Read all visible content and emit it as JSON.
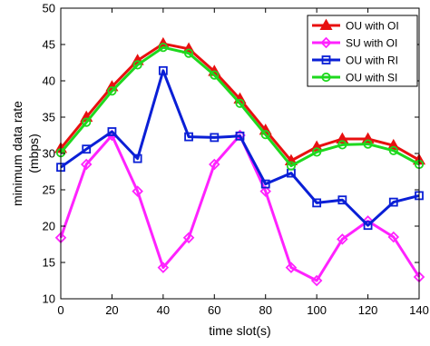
{
  "chart_data": {
    "type": "line",
    "xlabel": "time slot(s)",
    "ylabel_lines": [
      "minimum data rate",
      "(mbps)"
    ],
    "xlim": [
      0,
      140
    ],
    "ylim": [
      10,
      50
    ],
    "x_ticks": [
      0,
      20,
      40,
      60,
      80,
      100,
      120,
      140
    ],
    "y_ticks": [
      10,
      15,
      20,
      25,
      30,
      35,
      40,
      45,
      50
    ],
    "grid": false,
    "legend_position": "top-right",
    "x": [
      0,
      10,
      20,
      30,
      40,
      50,
      60,
      70,
      80,
      90,
      100,
      110,
      120,
      130,
      140
    ],
    "series": [
      {
        "name": "OU with OI",
        "color": "#e81010",
        "marker": "triangle",
        "values": [
          30.7,
          35.0,
          39.2,
          42.8,
          45.1,
          44.4,
          41.3,
          37.5,
          33.2,
          29.0,
          30.9,
          32.0,
          32.0,
          31.1,
          29.1
        ]
      },
      {
        "name": "SU with OI",
        "color": "#ff22ff",
        "marker": "diamond",
        "values": [
          18.4,
          28.5,
          32.5,
          24.8,
          14.3,
          18.4,
          28.5,
          32.5,
          24.8,
          14.3,
          12.5,
          18.2,
          20.7,
          18.5,
          13.0
        ]
      },
      {
        "name": "OU with RI",
        "color": "#0a1fd6",
        "marker": "square",
        "values": [
          28.1,
          30.6,
          33.0,
          29.3,
          41.4,
          32.3,
          32.2,
          32.4,
          25.8,
          27.3,
          23.2,
          23.6,
          20.1,
          23.3,
          24.2
        ]
      },
      {
        "name": "OU with SI",
        "color": "#1ed81e",
        "marker": "circle",
        "values": [
          30.1,
          34.3,
          38.6,
          42.2,
          44.6,
          43.8,
          40.8,
          36.9,
          32.6,
          28.3,
          30.2,
          31.2,
          31.3,
          30.4,
          28.5
        ]
      }
    ]
  }
}
